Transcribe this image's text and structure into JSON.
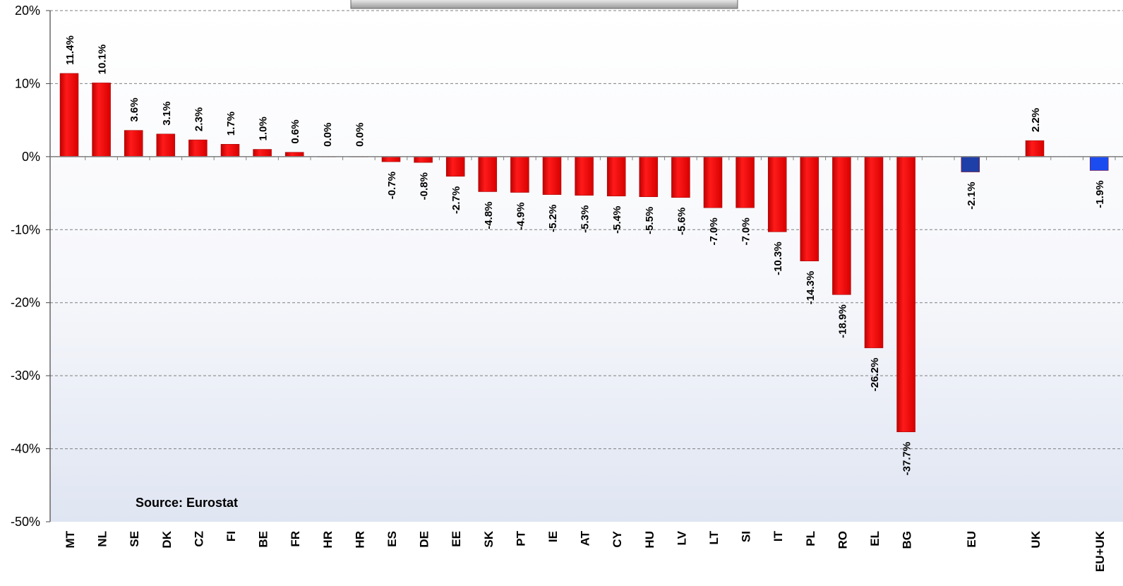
{
  "chart_data": {
    "type": "bar",
    "title": "",
    "source": "Source: Eurostat",
    "ylim": [
      -50,
      20
    ],
    "yticks": [
      20,
      10,
      0,
      -10,
      -20,
      -30,
      -40,
      -50
    ],
    "ytick_labels": [
      "20%",
      "10%",
      "0%",
      "-10%",
      "-20%",
      "-30%",
      "-40%",
      "-50%"
    ],
    "grid": true,
    "categories": [
      "MT",
      "NL",
      "SE",
      "DK",
      "CZ",
      "FI",
      "BE",
      "FR",
      "HR",
      "HR",
      "ES",
      "DE",
      "EE",
      "SK",
      "PT",
      "IE",
      "AT",
      "CY",
      "HU",
      "LV",
      "LT",
      "SI",
      "IT",
      "PL",
      "RO",
      "EL",
      "BG",
      "",
      "EU",
      "",
      "UK",
      "",
      "EU+UK"
    ],
    "values": [
      11.4,
      10.1,
      3.6,
      3.1,
      2.3,
      1.7,
      1.0,
      0.6,
      0.0,
      0.0,
      -0.7,
      -0.8,
      -2.7,
      -4.8,
      -4.9,
      -5.2,
      -5.3,
      -5.4,
      -5.5,
      -5.6,
      -7.0,
      -7.0,
      -10.3,
      -14.3,
      -18.9,
      -26.2,
      -37.7,
      null,
      -2.1,
      null,
      2.2,
      null,
      -1.9
    ],
    "value_labels": [
      "11.4%",
      "10.1%",
      "3.6%",
      "3.1%",
      "2.3%",
      "1.7%",
      "1.0%",
      "0.6%",
      "0.0%",
      "0.0%",
      "-0.7%",
      "-0.8%",
      "-2.7%",
      "-4.8%",
      "-4.9%",
      "-5.2%",
      "-5.3%",
      "-5.4%",
      "-5.5%",
      "-5.6%",
      "-7.0%",
      "-7.0%",
      "-10.3%",
      "-14.3%",
      "-18.9%",
      "-26.2%",
      "-37.7%",
      "",
      "-2.1%",
      "",
      "2.2%",
      "",
      "-1.9%"
    ],
    "bar_colors": {
      "default": "#e8000b",
      "EU": "#1f3fa8",
      "EU+UK": "#1a4cf0"
    }
  }
}
